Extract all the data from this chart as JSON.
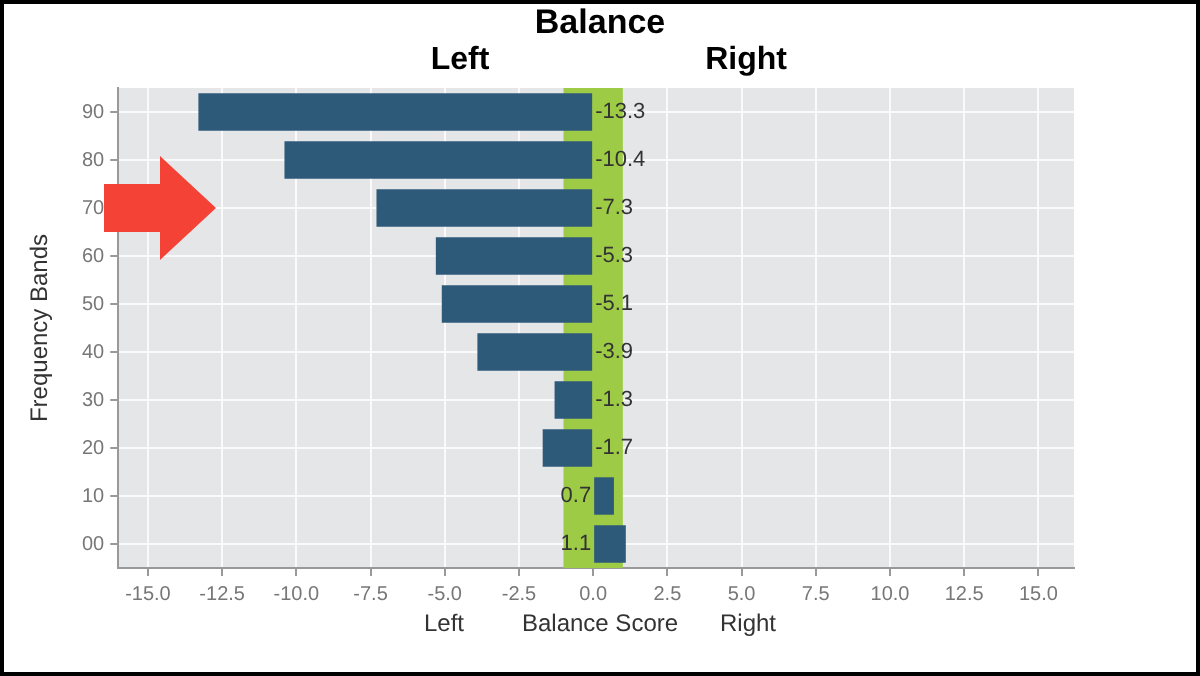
{
  "chart_data": {
    "type": "bar",
    "orientation": "horizontal",
    "title": "Balance",
    "subtitle": "Left Right",
    "xlabel": "Balance Score",
    "ylabel": "Frequency Bands",
    "annotations": [
      "Left",
      "Right"
    ],
    "categories": [
      "90",
      "80",
      "70",
      "60",
      "50",
      "40",
      "30",
      "20",
      "10",
      "00"
    ],
    "values": [
      -13.3,
      -10.4,
      -7.3,
      -5.3,
      -5.1,
      -3.9,
      -1.3,
      -1.7,
      0.7,
      1.1
    ],
    "color": "#2e5a7a",
    "xlim": [
      -16,
      16.2
    ],
    "xticks": [
      {
        "value": -15,
        "label": "-15.0"
      },
      {
        "value": -12.5,
        "label": "-12.5"
      },
      {
        "value": -10,
        "label": "-10.0"
      },
      {
        "value": -7.5,
        "label": "-7.5"
      },
      {
        "value": -5,
        "label": "-5.0"
      },
      {
        "value": -2.5,
        "label": "-2.5"
      },
      {
        "value": 0,
        "label": "0.0"
      },
      {
        "value": 2.5,
        "label": "2.5"
      },
      {
        "value": 5,
        "label": "5.0"
      },
      {
        "value": 7.5,
        "label": "7.5"
      },
      {
        "value": 10,
        "label": "10.0"
      },
      {
        "value": 12.5,
        "label": "12.5"
      },
      {
        "value": 15,
        "label": "15.0"
      }
    ],
    "bands": [
      {
        "axis": "x",
        "from": -1,
        "to": 1,
        "color": "#9dcb45"
      }
    ],
    "data_labels": true,
    "grid": true,
    "legend": false
  }
}
